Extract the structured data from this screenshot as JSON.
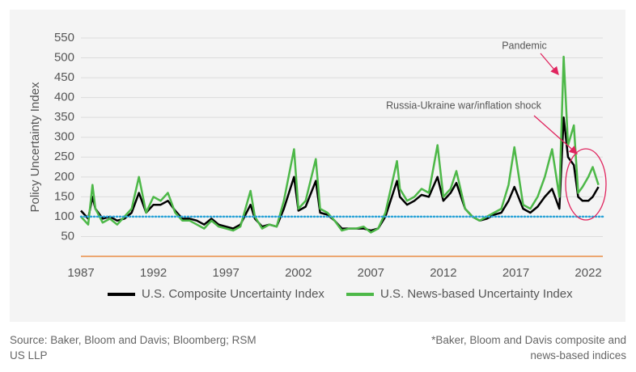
{
  "chart_data": {
    "type": "line",
    "y_label": "Policy Uncertainty Index",
    "x": [
      1987.0,
      1987.5,
      1987.8,
      1988.0,
      1988.5,
      1989.0,
      1989.5,
      1990.0,
      1990.5,
      1991.0,
      1991.5,
      1992.0,
      1992.5,
      1993.0,
      1993.5,
      1994.0,
      1994.5,
      1995.0,
      1995.5,
      1996.0,
      1996.5,
      1997.0,
      1997.5,
      1998.0,
      1998.7,
      1999.0,
      1999.5,
      2000.0,
      2000.5,
      2001.0,
      2001.7,
      2002.0,
      2002.5,
      2003.2,
      2003.5,
      2004.0,
      2004.5,
      2005.0,
      2005.5,
      2006.0,
      2006.5,
      2007.0,
      2007.5,
      2008.0,
      2008.8,
      2009.0,
      2009.5,
      2010.0,
      2010.5,
      2011.0,
      2011.6,
      2012.0,
      2012.5,
      2012.9,
      2013.5,
      2014.0,
      2014.5,
      2015.0,
      2015.5,
      2016.0,
      2016.5,
      2016.9,
      2017.5,
      2018.0,
      2018.5,
      2019.0,
      2019.5,
      2020.0,
      2020.3,
      2020.6,
      2021.0,
      2021.3,
      2021.6,
      2022.0,
      2022.3,
      2022.7
    ],
    "series": [
      {
        "name": "U.S. Composite Uncertainty Index",
        "color": "#000000",
        "values": [
          115,
          95,
          150,
          120,
          95,
          100,
          90,
          95,
          110,
          160,
          110,
          130,
          130,
          140,
          115,
          95,
          95,
          90,
          80,
          95,
          80,
          75,
          70,
          80,
          130,
          95,
          75,
          80,
          75,
          120,
          200,
          115,
          125,
          190,
          110,
          105,
          90,
          70,
          70,
          70,
          70,
          65,
          70,
          100,
          190,
          150,
          130,
          140,
          155,
          150,
          200,
          140,
          160,
          185,
          120,
          100,
          90,
          95,
          105,
          110,
          140,
          175,
          120,
          110,
          125,
          150,
          170,
          120,
          350,
          250,
          230,
          150,
          140,
          140,
          150,
          175
        ]
      },
      {
        "name": "U.S. News-based Uncertainty Index",
        "color": "#4db848",
        "values": [
          100,
          80,
          180,
          120,
          85,
          95,
          80,
          100,
          120,
          200,
          110,
          150,
          140,
          160,
          110,
          90,
          90,
          80,
          70,
          90,
          75,
          70,
          65,
          75,
          165,
          100,
          70,
          80,
          75,
          140,
          270,
          120,
          140,
          245,
          120,
          110,
          90,
          65,
          70,
          70,
          75,
          60,
          70,
          110,
          240,
          170,
          140,
          150,
          170,
          160,
          280,
          150,
          170,
          215,
          120,
          100,
          90,
          100,
          110,
          120,
          180,
          275,
          130,
          120,
          150,
          200,
          270,
          150,
          503,
          280,
          330,
          160,
          175,
          200,
          225,
          180
        ]
      }
    ],
    "xlim": [
      1987,
      2023
    ],
    "xticks": [
      1987,
      1992,
      1997,
      2002,
      2007,
      2012,
      2017,
      2022
    ],
    "ylim": [
      0,
      550
    ],
    "yticks": [
      50,
      100,
      150,
      200,
      250,
      300,
      350,
      400,
      450,
      500,
      550
    ],
    "grid": true,
    "reference_value": 100,
    "reference_color": "#29a3d8",
    "baseline_color": "#e87722",
    "annotations": [
      {
        "text": "Pandemic"
      },
      {
        "text": "Russia-Ukraine war/inflation shock"
      }
    ],
    "source": "Source: Baker, Bloom and Davis; Bloomberg; RSM US LLP",
    "footnote": "*Baker, Bloom and Davis composite and news-based indices"
  }
}
